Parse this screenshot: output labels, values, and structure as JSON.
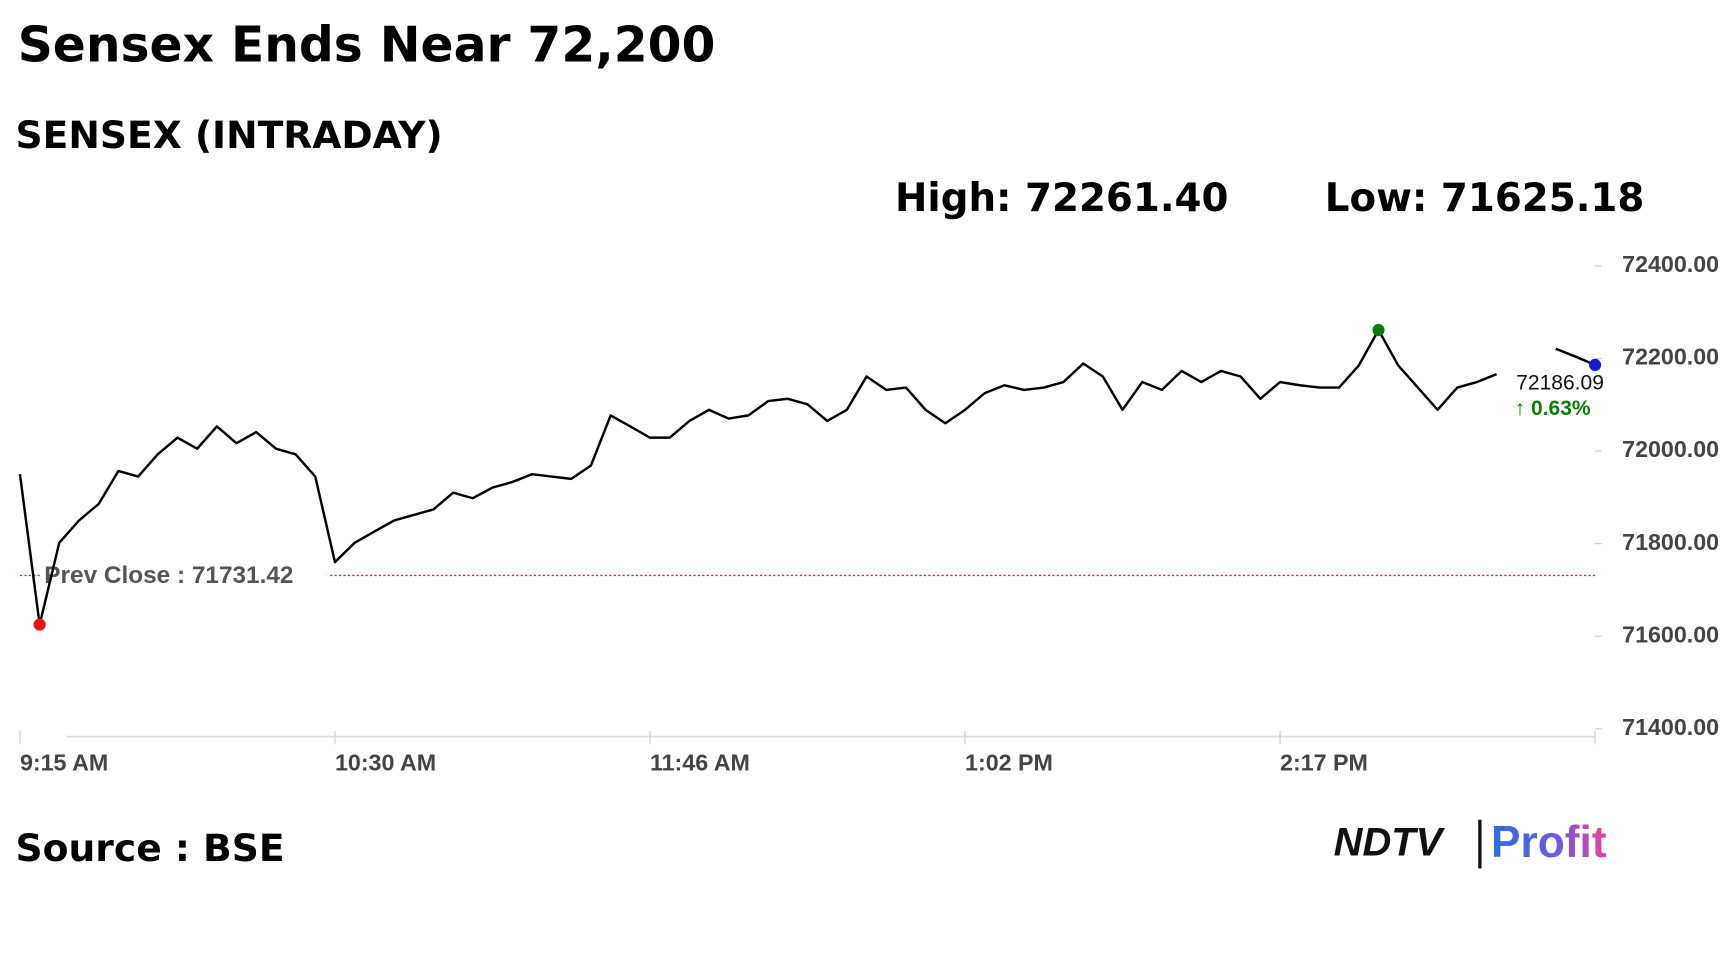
{
  "header": {
    "title": "Sensex Ends Near 72,200",
    "subtitle": "SENSEX (INTRADAY)",
    "high": "High: 72261.40",
    "low": "Low: 71625.18"
  },
  "chart_data": {
    "type": "line",
    "categories": [
      "9:15 AM",
      null,
      null,
      null,
      null,
      null,
      null,
      null,
      null,
      null,
      null,
      null,
      null,
      null,
      null,
      null,
      "10:30 AM",
      null,
      null,
      null,
      null,
      null,
      null,
      null,
      null,
      null,
      null,
      null,
      null,
      null,
      null,
      null,
      "11:46 AM",
      null,
      null,
      null,
      null,
      null,
      null,
      null,
      null,
      null,
      null,
      null,
      null,
      null,
      null,
      null,
      "1:02 PM",
      null,
      null,
      null,
      null,
      null,
      null,
      null,
      null,
      null,
      null,
      null,
      null,
      null,
      null,
      null,
      "2:17 PM",
      null,
      null,
      null,
      null,
      null,
      null,
      null,
      null,
      null,
      null,
      null,
      null,
      null,
      null,
      null,
      null
    ],
    "series": [
      {
        "name": "SENSEX",
        "color": "#000000",
        "values": [
          71950,
          71625.18,
          71802,
          71850,
          71886,
          71957,
          71945,
          71993,
          72029,
          72005,
          72053,
          72017,
          72041,
          72005,
          71993,
          71945,
          71760,
          71802,
          71826,
          71850,
          71862,
          71874,
          71910,
          71898,
          71921,
          71933,
          71950,
          71945,
          71940,
          71969,
          72077,
          72053,
          72029,
          72029,
          72065,
          72089,
          72070,
          72077,
          72108,
          72113,
          72101,
          72065,
          72089,
          72161,
          72132,
          72137,
          72089,
          72060,
          72089,
          72125,
          72142,
          72132,
          72137,
          72149,
          72189,
          72161,
          72089,
          72149,
          72132,
          72173,
          72149,
          72173,
          72161,
          72113,
          72149,
          72142,
          72137,
          72137,
          72185,
          72261.4,
          72185,
          72137,
          72089,
          72137,
          72149,
          72166,
          null,
          null,
          72221,
          72204,
          72186.09
        ]
      }
    ],
    "ylim": [
      71400,
      72400
    ],
    "yticks": [
      {
        "value": 71400,
        "label": "71400.00"
      },
      {
        "value": 71600,
        "label": "71600.00"
      },
      {
        "value": 71800,
        "label": "71800.00"
      },
      {
        "value": 72000,
        "label": "72000.00"
      },
      {
        "value": 72200,
        "label": "72200.00"
      },
      {
        "value": 72400,
        "label": "72400.00"
      }
    ],
    "prev_close": {
      "value": 71731.42,
      "label": "Prev Close : 71731.42"
    },
    "last_label": "72186.09",
    "change_label": "↑ 0.63%",
    "marker_colors": {
      "low": "#e8141b",
      "high": "#0a7d0a",
      "last": "#1a1acf"
    },
    "change_color": "#0a7d0a",
    "prev_close_color": "#c0392b"
  },
  "footer": {
    "source": "Source : BSE",
    "logo_left": "NDTV",
    "logo_right": "Profit"
  }
}
